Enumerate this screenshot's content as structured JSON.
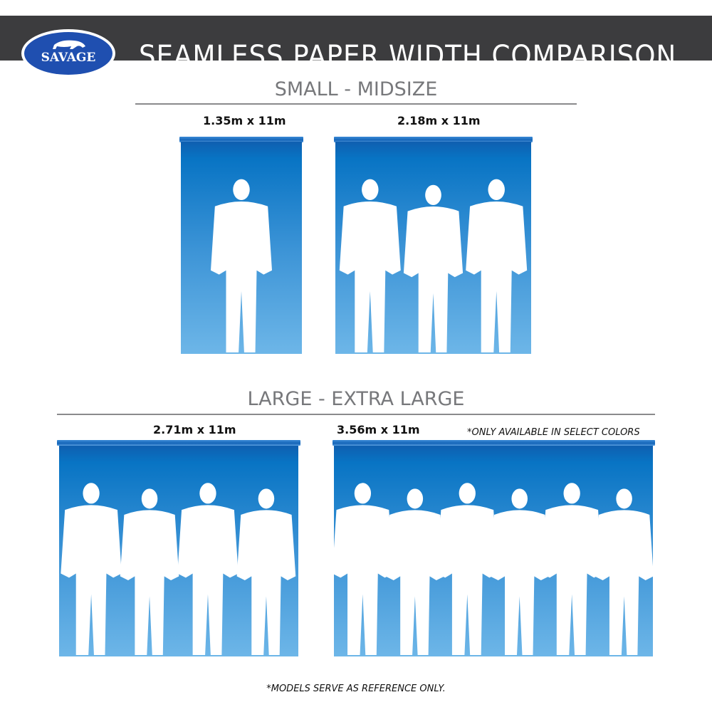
{
  "header": {
    "logo_text": "SAVAGE",
    "title": "SEAMLESS PAPER WIDTH COMPARISON",
    "logo_color": "#1f4fb0",
    "bar_color": "#3c3c3e"
  },
  "sections": [
    {
      "title": "SMALL - MIDSIZE",
      "panels": [
        {
          "size": "1.35m x 11m",
          "people": 1
        },
        {
          "size": "2.18m x 11m",
          "people": 3
        }
      ]
    },
    {
      "title": "LARGE - EXTRA LARGE",
      "panels": [
        {
          "size": "2.71m x 11m",
          "people": 4
        },
        {
          "size": "3.56m x 11m",
          "people": 6
        }
      ],
      "note": "*ONLY AVAILABLE IN SELECT COLORS"
    }
  ],
  "footer": "*MODELS SERVE AS REFERENCE ONLY.",
  "colors": {
    "paper_top": "#0f5fb0",
    "paper_bottom": "#6db6e8",
    "silhouette": "#ffffff"
  }
}
